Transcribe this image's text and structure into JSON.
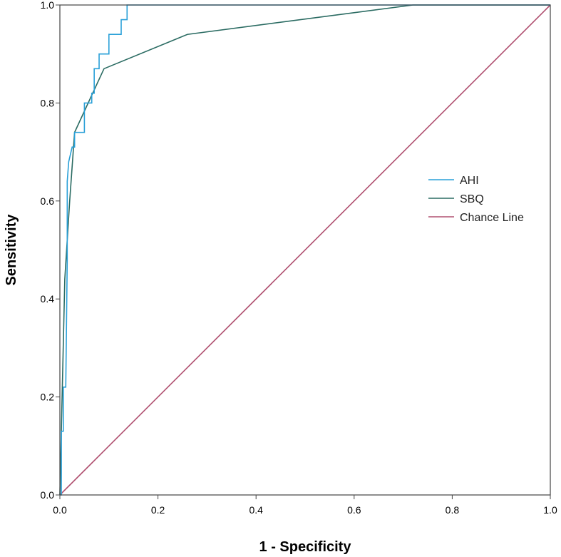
{
  "chart_data": {
    "type": "line",
    "xlabel": "1 - Specificity",
    "ylabel": "Sensitivity",
    "xlim": [
      0,
      1
    ],
    "ylim": [
      0,
      1
    ],
    "xticks": [
      "0.0",
      "0.2",
      "0.4",
      "0.6",
      "0.8",
      "1.0"
    ],
    "yticks": [
      "0.0",
      "0.2",
      "0.4",
      "0.6",
      "0.8",
      "1.0"
    ],
    "grid": false,
    "legend_position": "right",
    "series": [
      {
        "name": "AHI",
        "color": "#2aa0d8",
        "step": true,
        "x": [
          0.0,
          0.003,
          0.003,
          0.007,
          0.007,
          0.012,
          0.015,
          0.015,
          0.018,
          0.025,
          0.03,
          0.03,
          0.05,
          0.05,
          0.065,
          0.065,
          0.07,
          0.07,
          0.08,
          0.08,
          0.1,
          0.1,
          0.125,
          0.125,
          0.137,
          0.137,
          0.14,
          1.0
        ],
        "y": [
          0.0,
          0.0,
          0.13,
          0.13,
          0.22,
          0.22,
          0.48,
          0.64,
          0.68,
          0.71,
          0.71,
          0.74,
          0.74,
          0.8,
          0.8,
          0.82,
          0.82,
          0.87,
          0.87,
          0.9,
          0.9,
          0.94,
          0.94,
          0.97,
          0.97,
          1.0,
          1.0,
          1.0
        ]
      },
      {
        "name": "SBQ",
        "color": "#2a6b62",
        "step": false,
        "x": [
          0.0,
          0.005,
          0.01,
          0.02,
          0.03,
          0.09,
          0.26,
          0.72,
          1.0
        ],
        "y": [
          0.0,
          0.22,
          0.44,
          0.6,
          0.74,
          0.87,
          0.94,
          1.0,
          1.0
        ]
      },
      {
        "name": "Chance Line",
        "color": "#b05070",
        "step": false,
        "x": [
          0.0,
          1.0
        ],
        "y": [
          0.0,
          1.0
        ]
      }
    ]
  }
}
